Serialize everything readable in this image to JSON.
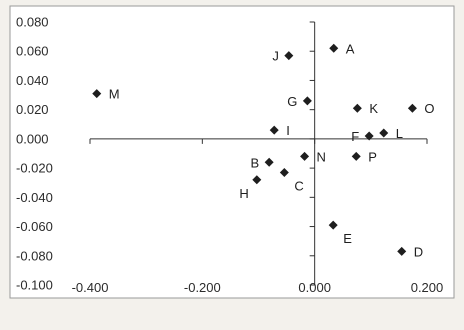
{
  "chart_data": {
    "type": "scatter",
    "title": "",
    "xlabel": "",
    "ylabel": "",
    "xlim": [
      -0.4,
      0.2
    ],
    "ylim": [
      -0.1,
      0.08
    ],
    "x_ticks": [
      -0.4,
      -0.2,
      0.0,
      0.2
    ],
    "x_tick_labels": [
      "-0.400",
      "-0.200",
      "0.000",
      "0.200"
    ],
    "y_ticks": [
      0.08,
      0.06,
      0.04,
      0.02,
      0.0,
      -0.02,
      -0.04,
      -0.06,
      -0.08,
      -0.1
    ],
    "y_tick_labels": [
      "0.080",
      "0.060",
      "0.040",
      "0.020",
      "0.000",
      "-0.020",
      "-0.040",
      "-0.060",
      "-0.080",
      "-0.100"
    ],
    "grid": false,
    "legend": "none",
    "marker_color": "#1e1e1e",
    "points": [
      {
        "label": "A",
        "x": 0.034,
        "y": 0.062,
        "label_pos": "right"
      },
      {
        "label": "J",
        "x": -0.046,
        "y": 0.057,
        "label_pos": "left"
      },
      {
        "label": "M",
        "x": -0.388,
        "y": 0.031,
        "label_pos": "right"
      },
      {
        "label": "G",
        "x": -0.013,
        "y": 0.026,
        "label_pos": "left"
      },
      {
        "label": "K",
        "x": 0.076,
        "y": 0.021,
        "label_pos": "right"
      },
      {
        "label": "O",
        "x": 0.174,
        "y": 0.021,
        "label_pos": "right"
      },
      {
        "label": "I",
        "x": -0.072,
        "y": 0.006,
        "label_pos": "right"
      },
      {
        "label": "F",
        "x": 0.097,
        "y": 0.002,
        "label_pos": "left"
      },
      {
        "label": "L",
        "x": 0.123,
        "y": 0.004,
        "label_pos": "right"
      },
      {
        "label": "N",
        "x": -0.018,
        "y": -0.012,
        "label_pos": "right"
      },
      {
        "label": "P",
        "x": 0.074,
        "y": -0.012,
        "label_pos": "right"
      },
      {
        "label": "B",
        "x": -0.081,
        "y": -0.016,
        "label_pos": "left"
      },
      {
        "label": "C",
        "x": -0.054,
        "y": -0.023,
        "label_pos": "below-right"
      },
      {
        "label": "H",
        "x": -0.103,
        "y": -0.028,
        "label_pos": "below-left"
      },
      {
        "label": "E",
        "x": 0.033,
        "y": -0.059,
        "label_pos": "below-right"
      },
      {
        "label": "D",
        "x": 0.155,
        "y": -0.077,
        "label_pos": "right"
      }
    ]
  }
}
